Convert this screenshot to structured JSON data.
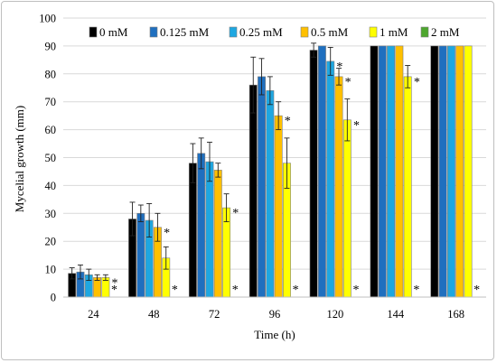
{
  "chart_data": {
    "type": "bar",
    "title": "",
    "xlabel": "Time (h)",
    "ylabel": "Mycelial growth (mm)",
    "ylim": [
      0,
      100
    ],
    "yticks": [
      "0",
      "10",
      "20",
      "30",
      "40",
      "50",
      "60",
      "70",
      "80",
      "90",
      "100"
    ],
    "categories": [
      "24",
      "48",
      "72",
      "96",
      "120",
      "144",
      "168"
    ],
    "grid": "horizontal",
    "legend_position": "top",
    "series": [
      {
        "name": "0 mM",
        "color": "#000000",
        "values": [
          8.5,
          28,
          48,
          76,
          88.5,
          90,
          90
        ],
        "errors": [
          2,
          6,
          7,
          10,
          2.5,
          0,
          0
        ]
      },
      {
        "name": "0.125 mM",
        "color": "#1f6fbf",
        "values": [
          9,
          30,
          51.5,
          79,
          90,
          90,
          90
        ],
        "errors": [
          2.5,
          3,
          5.5,
          6.5,
          0,
          0,
          0
        ]
      },
      {
        "name": "0.25 mM",
        "color": "#1ea7e1",
        "values": [
          8,
          27.5,
          48.5,
          74,
          84.5,
          90,
          90
        ],
        "errors": [
          2,
          6,
          7,
          5,
          5,
          0,
          0
        ]
      },
      {
        "name": "0.5 mM",
        "color": "#ffc000",
        "values": [
          7,
          25,
          45.5,
          65,
          79,
          90,
          90
        ],
        "errors": [
          1,
          5,
          2.5,
          5,
          3,
          0,
          0
        ]
      },
      {
        "name": "1 mM",
        "color": "#ffff00",
        "values": [
          7,
          14,
          32,
          48,
          63.5,
          79,
          90
        ],
        "errors": [
          1,
          4,
          5,
          9,
          7.5,
          4,
          0
        ]
      },
      {
        "name": "2 mM",
        "color": "#4ea72e",
        "values": [
          0,
          0,
          0,
          0,
          0,
          0,
          0
        ],
        "errors": [
          0,
          0,
          0,
          0,
          0,
          0,
          0
        ]
      }
    ],
    "annotations": [
      {
        "category": "24",
        "series": "1 mM",
        "text": "*"
      },
      {
        "category": "24",
        "series": "2 mM",
        "text": "*"
      },
      {
        "category": "48",
        "series": "0.5 mM",
        "text": "*"
      },
      {
        "category": "48",
        "series": "2 mM",
        "text": "*"
      },
      {
        "category": "72",
        "series": "1 mM",
        "text": "*"
      },
      {
        "category": "72",
        "series": "2 mM",
        "text": "*"
      },
      {
        "category": "96",
        "series": "0.5 mM",
        "text": "*"
      },
      {
        "category": "96",
        "series": "2 mM",
        "text": "*"
      },
      {
        "category": "120",
        "series": "0.25 mM",
        "text": "*"
      },
      {
        "category": "120",
        "series": "0.5 mM",
        "text": "*"
      },
      {
        "category": "120",
        "series": "1 mM",
        "text": "*"
      },
      {
        "category": "120",
        "series": "2 mM",
        "text": "*"
      },
      {
        "category": "144",
        "series": "1 mM",
        "text": "*"
      },
      {
        "category": "144",
        "series": "2 mM",
        "text": "*"
      },
      {
        "category": "168",
        "series": "2 mM",
        "text": "*"
      }
    ]
  }
}
